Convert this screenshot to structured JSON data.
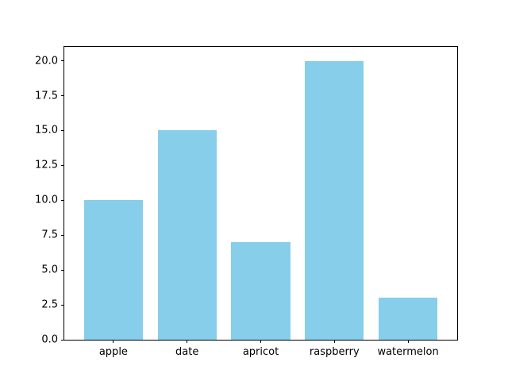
{
  "figure": {
    "background_color": "#ffffff",
    "spine_color": "#000000"
  },
  "chart_data": {
    "type": "bar",
    "categories": [
      "apple",
      "date",
      "apricot",
      "raspberry",
      "watermelon"
    ],
    "values": [
      10,
      15,
      7,
      20,
      3
    ],
    "title": "",
    "xlabel": "",
    "ylabel": "",
    "bar_color": "#87CEEB",
    "bar_width_fraction": 0.8,
    "xlim": [
      -0.667,
      4.667
    ],
    "ylim": [
      0,
      21
    ],
    "yticks": [
      0.0,
      2.5,
      5.0,
      7.5,
      10.0,
      12.5,
      15.0,
      17.5,
      20.0
    ],
    "ytick_labels": [
      "0.0",
      "2.5",
      "5.0",
      "7.5",
      "10.0",
      "12.5",
      "15.0",
      "17.5",
      "20.0"
    ],
    "grid": false,
    "legend": "none"
  }
}
